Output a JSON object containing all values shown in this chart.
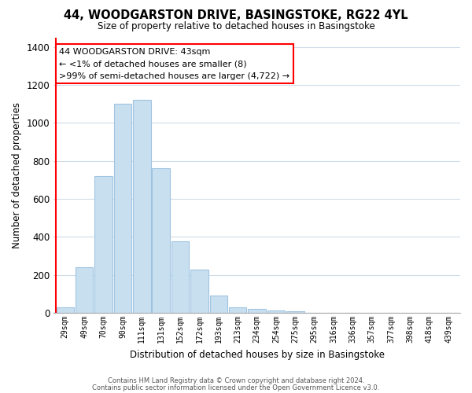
{
  "title": "44, WOODGARSTON DRIVE, BASINGSTOKE, RG22 4YL",
  "subtitle": "Size of property relative to detached houses in Basingstoke",
  "xlabel": "Distribution of detached houses by size in Basingstoke",
  "ylabel": "Number of detached properties",
  "bar_color": "#c8dff0",
  "bar_edge_color": "#a0c4e0",
  "categories": [
    "29sqm",
    "49sqm",
    "70sqm",
    "90sqm",
    "111sqm",
    "131sqm",
    "152sqm",
    "172sqm",
    "193sqm",
    "213sqm",
    "234sqm",
    "254sqm",
    "275sqm",
    "295sqm",
    "316sqm",
    "336sqm",
    "357sqm",
    "377sqm",
    "398sqm",
    "418sqm",
    "439sqm"
  ],
  "values": [
    30,
    240,
    720,
    1100,
    1120,
    760,
    375,
    230,
    90,
    30,
    20,
    15,
    10,
    0,
    0,
    0,
    0,
    0,
    0,
    0,
    0
  ],
  "ylim": [
    0,
    1450
  ],
  "yticks": [
    0,
    200,
    400,
    600,
    800,
    1000,
    1200,
    1400
  ],
  "annotation_title": "44 WOODGARSTON DRIVE: 43sqm",
  "annotation_line1": "← <1% of detached houses are smaller (8)",
  "annotation_line2": ">99% of semi-detached houses are larger (4,722) →",
  "footer1": "Contains HM Land Registry data © Crown copyright and database right 2024.",
  "footer2": "Contains public sector information licensed under the Open Government Licence v3.0.",
  "background_color": "#ffffff",
  "grid_color": "#d0dce8"
}
